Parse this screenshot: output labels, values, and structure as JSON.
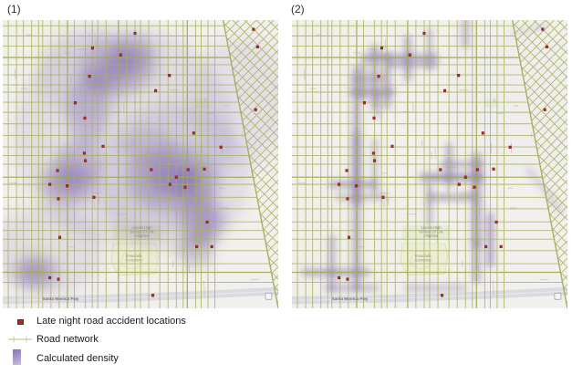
{
  "figure": {
    "panel1_label": "(1)",
    "panel2_label": "(2)"
  },
  "legend": {
    "items": [
      {
        "label": "Late night road accident locations",
        "symbol": "accident-point"
      },
      {
        "label": "Road network",
        "symbol": "road-line"
      },
      {
        "label": "Calculated density",
        "symbol": "density-gradient"
      }
    ],
    "swatch_top": "#8872b8",
    "swatch_bottom": "#c6bedd"
  },
  "colors": {
    "base": "#f2f0ec",
    "road": "#a7b15f",
    "road_major": "#9da950",
    "density": "#7b63ad",
    "accident": "#ad2c24",
    "accident_border": "#76201b",
    "cemetery_fill": "#edeed6",
    "cemetery_stroke": "#d9deb4",
    "park_fill": "#e3ead0",
    "freeway_fill": "#d9d8de",
    "freeway_center": "#ecebf0",
    "label_gray": "#8a8c90",
    "label_olive": "#9a9c74",
    "freeway_label": "#6f6f74",
    "micro_label": "#a9a8a2",
    "legend_road": "#c6cc9d",
    "shield_fill": "#f5f5f7",
    "shield_stroke": "#9a9aa0"
  },
  "map_labels": {
    "freeway": "Santa Monica Fwy",
    "cemetery_line1": "Rosedale",
    "cemetery_line2": "Cemetery",
    "school_line1": "Loyola High",
    "school_line2": "School Of Los",
    "school_line3": "Angeles"
  },
  "map_data": {
    "accident_points": [
      [
        0.48,
        0.046
      ],
      [
        0.91,
        0.032
      ],
      [
        0.326,
        0.097
      ],
      [
        0.428,
        0.121
      ],
      [
        0.315,
        0.195
      ],
      [
        0.605,
        0.192
      ],
      [
        0.555,
        0.245
      ],
      [
        0.263,
        0.287
      ],
      [
        0.298,
        0.34
      ],
      [
        0.364,
        0.438
      ],
      [
        0.296,
        0.462
      ],
      [
        0.3,
        0.488
      ],
      [
        0.199,
        0.522
      ],
      [
        0.171,
        0.57
      ],
      [
        0.234,
        0.575
      ],
      [
        0.202,
        0.62
      ],
      [
        0.331,
        0.615
      ],
      [
        0.539,
        0.519
      ],
      [
        0.607,
        0.57
      ],
      [
        0.673,
        0.519
      ],
      [
        0.732,
        0.517
      ],
      [
        0.662,
        0.58
      ],
      [
        0.792,
        0.441
      ],
      [
        0.693,
        0.392
      ],
      [
        0.742,
        0.701
      ],
      [
        0.704,
        0.786
      ],
      [
        0.759,
        0.786
      ],
      [
        0.207,
        0.754
      ],
      [
        0.171,
        0.894
      ],
      [
        0.202,
        0.899
      ],
      [
        0.918,
        0.311
      ],
      [
        0.925,
        0.093
      ],
      [
        0.63,
        0.545
      ],
      [
        0.545,
        0.955
      ]
    ],
    "kernel_density_blobs": [
      [
        0.44,
        0.4,
        0.4,
        0.38,
        0.14
      ],
      [
        0.62,
        0.55,
        0.28,
        0.26,
        0.14
      ],
      [
        0.16,
        0.8,
        0.2,
        0.16,
        0.13
      ],
      [
        0.86,
        0.28,
        0.18,
        0.22,
        0.1
      ],
      [
        0.3,
        0.18,
        0.18,
        0.16,
        0.12
      ],
      [
        0.42,
        0.16,
        0.14,
        0.095,
        0.3
      ],
      [
        0.48,
        0.105,
        0.08,
        0.055,
        0.26
      ],
      [
        0.355,
        0.21,
        0.06,
        0.05,
        0.28
      ],
      [
        0.31,
        0.31,
        0.075,
        0.13,
        0.3
      ],
      [
        0.275,
        0.5,
        0.085,
        0.08,
        0.3
      ],
      [
        0.24,
        0.565,
        0.105,
        0.08,
        0.32
      ],
      [
        0.615,
        0.55,
        0.165,
        0.115,
        0.34
      ],
      [
        0.72,
        0.69,
        0.085,
        0.1,
        0.32
      ],
      [
        0.7,
        0.8,
        0.065,
        0.06,
        0.3
      ],
      [
        0.12,
        0.875,
        0.085,
        0.06,
        0.32
      ],
      [
        0.53,
        0.44,
        0.1,
        0.07,
        0.2
      ],
      [
        0.435,
        0.155,
        0.075,
        0.048,
        0.4
      ],
      [
        0.625,
        0.548,
        0.1,
        0.062,
        0.42
      ],
      [
        0.66,
        0.56,
        0.05,
        0.042,
        0.36
      ],
      [
        0.73,
        0.7,
        0.048,
        0.058,
        0.36
      ],
      [
        0.115,
        0.875,
        0.05,
        0.034,
        0.36
      ],
      [
        0.235,
        0.565,
        0.06,
        0.042,
        0.34
      ]
    ],
    "network_density_segments": [
      [
        0.235,
        0.17,
        0.235,
        0.93,
        6,
        0.4
      ],
      [
        0.235,
        0.4,
        0.235,
        0.63,
        7,
        0.3
      ],
      [
        0.3,
        0.095,
        0.3,
        0.3,
        6,
        0.38
      ],
      [
        0.3,
        0.42,
        0.3,
        0.6,
        5,
        0.26
      ],
      [
        0.345,
        0.12,
        0.345,
        0.295,
        6,
        0.38
      ],
      [
        0.42,
        0.065,
        0.42,
        0.2,
        6,
        0.36
      ],
      [
        0.5,
        0.04,
        0.5,
        0.165,
        5,
        0.26
      ],
      [
        0.5,
        0.575,
        0.5,
        0.7,
        5,
        0.28
      ],
      [
        0.57,
        0.44,
        0.57,
        0.565,
        6,
        0.34
      ],
      [
        0.63,
        0.0,
        0.63,
        0.085,
        6,
        0.3
      ],
      [
        0.67,
        0.475,
        0.67,
        0.775,
        7,
        0.46
      ],
      [
        0.67,
        0.775,
        0.67,
        0.9,
        6,
        0.38
      ],
      [
        0.72,
        0.68,
        0.72,
        0.845,
        6,
        0.4
      ],
      [
        0.145,
        0.755,
        0.145,
        0.935,
        5,
        0.34
      ],
      [
        0.26,
        0.155,
        0.26,
        0.27,
        5,
        0.3
      ],
      [
        0.31,
        0.25,
        0.31,
        0.335,
        4,
        0.26
      ],
      [
        0.26,
        0.13,
        0.52,
        0.13,
        6,
        0.38
      ],
      [
        0.36,
        0.155,
        0.52,
        0.155,
        5,
        0.3
      ],
      [
        0.22,
        0.205,
        0.325,
        0.205,
        5,
        0.28
      ],
      [
        0.22,
        0.25,
        0.36,
        0.25,
        6,
        0.36
      ],
      [
        0.15,
        0.57,
        0.3,
        0.57,
        6,
        0.36
      ],
      [
        0.48,
        0.545,
        0.685,
        0.545,
        7,
        0.46
      ],
      [
        0.5,
        0.615,
        0.66,
        0.615,
        6,
        0.36
      ],
      [
        0.17,
        0.615,
        0.335,
        0.615,
        5,
        0.28
      ],
      [
        0.05,
        0.875,
        0.27,
        0.875,
        6,
        0.38
      ],
      [
        0.13,
        0.93,
        0.305,
        0.93,
        5,
        0.3
      ],
      [
        0.42,
        0.93,
        0.625,
        0.93,
        5,
        0.26
      ],
      [
        0.55,
        0.5,
        0.685,
        0.5,
        5,
        0.3
      ],
      [
        0.86,
        0.52,
        0.975,
        0.66,
        5,
        0.18
      ],
      [
        0.8,
        0.05,
        0.92,
        0.02,
        4,
        0.15
      ]
    ],
    "road_grid": {
      "verticals": [
        0.02,
        0.05,
        0.075,
        0.105,
        0.13,
        0.145,
        0.175,
        0.205,
        0.235,
        0.26,
        0.3,
        0.325,
        0.345,
        0.375,
        0.42,
        0.45,
        0.48,
        0.5,
        0.53,
        0.57,
        0.6,
        0.63,
        0.655,
        0.67,
        0.7,
        0.72,
        0.745,
        0.77
      ],
      "major_verticals": [
        0.235,
        0.42,
        0.67
      ],
      "horizontals": [
        0.02,
        0.055,
        0.09,
        0.13,
        0.155,
        0.19,
        0.225,
        0.25,
        0.285,
        0.32,
        0.36,
        0.4,
        0.44,
        0.47,
        0.5,
        0.545,
        0.57,
        0.615,
        0.655,
        0.7,
        0.73,
        0.76,
        0.8,
        0.845,
        0.875,
        0.91
      ],
      "major_horizontals": [
        0.13,
        0.545,
        0.875
      ],
      "diagonal_region": [
        [
          0.8,
          0.0
        ],
        [
          1.0,
          0.0
        ],
        [
          1.0,
          1.0
        ]
      ],
      "diagonal_spacing_a": 13,
      "diagonal_spacing_b": 9.5
    },
    "freeway_path": [
      [
        0.0,
        0.972
      ],
      [
        0.36,
        0.966
      ],
      [
        0.7,
        0.954
      ],
      [
        1.0,
        0.94
      ]
    ],
    "cemetery_polygon": [
      [
        0.4,
        0.775
      ],
      [
        0.555,
        0.775
      ],
      [
        0.565,
        0.815
      ],
      [
        0.555,
        0.88
      ],
      [
        0.42,
        0.885
      ],
      [
        0.395,
        0.84
      ]
    ],
    "school_band": [
      0.4,
      0.712,
      0.17,
      0.052
    ],
    "parks": [
      [
        0.7,
        0.272,
        0.05,
        0.032
      ],
      [
        0.612,
        0.592,
        0.038,
        0.026
      ]
    ],
    "school_label_pos": [
      0.505,
      0.724
    ],
    "cemetery_label_pos": [
      0.475,
      0.822
    ],
    "freeway_label_pos": [
      0.21,
      0.967
    ],
    "shield_pos": [
      0.965,
      0.958
    ]
  }
}
